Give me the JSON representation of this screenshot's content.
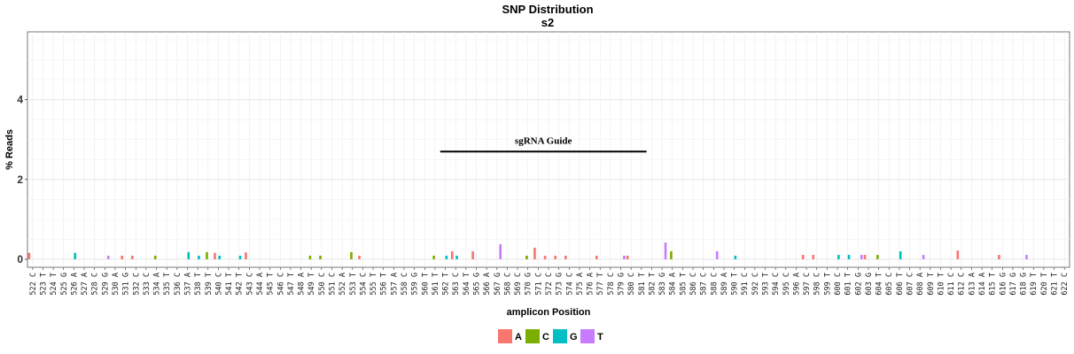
{
  "chart_data": {
    "type": "bar",
    "title": "SNP Distribution",
    "subtitle": "s2",
    "xlabel": "amplicon Position",
    "ylabel": "% Reads",
    "ylim": [
      -0.2,
      5.7
    ],
    "yticks": [
      0,
      2,
      4
    ],
    "grid": true,
    "legend_position": "bottom",
    "categories": [
      "522 C",
      "523 T",
      "524 T",
      "525 G",
      "526 A",
      "527 A",
      "528 C",
      "529 G",
      "530 A",
      "531 G",
      "532 C",
      "533 C",
      "534 A",
      "535 T",
      "536 C",
      "537 A",
      "538 T",
      "539 T",
      "540 C",
      "541 T",
      "542 T",
      "543 C",
      "544 A",
      "545 T",
      "546 C",
      "547 T",
      "548 A",
      "549 T",
      "550 C",
      "551 C",
      "552 A",
      "553 T",
      "554 C",
      "555 T",
      "556 T",
      "557 A",
      "558 C",
      "559 G",
      "560 T",
      "561 T",
      "562 T",
      "563 C",
      "564 T",
      "565 G",
      "566 A",
      "567 G",
      "568 C",
      "569 C",
      "570 G",
      "571 C",
      "572 C",
      "573 G",
      "574 C",
      "575 A",
      "576 A",
      "577 T",
      "578 C",
      "579 G",
      "580 C",
      "581 T",
      "582 T",
      "583 G",
      "584 A",
      "585 T",
      "586 C",
      "587 C",
      "588 C",
      "589 A",
      "590 T",
      "591 C",
      "592 C",
      "593 T",
      "594 C",
      "595 C",
      "596 A",
      "597 C",
      "598 C",
      "599 T",
      "600 C",
      "601 T",
      "602 G",
      "603 G",
      "604 T",
      "605 C",
      "606 T",
      "607 C",
      "608 A",
      "609 T",
      "610 T",
      "611 C",
      "612 C",
      "613 A",
      "614 A",
      "615 T",
      "616 G",
      "617 G",
      "618 G",
      "619 T",
      "620 T",
      "621 T",
      "622 C"
    ],
    "series": [
      {
        "name": "A",
        "color": "#F8766D",
        "values": [
          0.16,
          0,
          0,
          0,
          0,
          0,
          0,
          0,
          0,
          0.09,
          0.09,
          0,
          0,
          0,
          0,
          0,
          0,
          0,
          0.16,
          0,
          0,
          0.17,
          0,
          0,
          0,
          0,
          0,
          0,
          0,
          0,
          0,
          0,
          0.09,
          0,
          0,
          0,
          0,
          0,
          0,
          0,
          0,
          0.2,
          0,
          0.2,
          0,
          0,
          0,
          0,
          0,
          0.29,
          0.09,
          0.09,
          0.09,
          0,
          0,
          0.09,
          0,
          0,
          0.09,
          0,
          0,
          0,
          0,
          0,
          0,
          0,
          0,
          0,
          0,
          0,
          0,
          0,
          0,
          0,
          0,
          0.11,
          0.11,
          0,
          0,
          0,
          0,
          0.11,
          0,
          0,
          0,
          0,
          0,
          0,
          0,
          0,
          0.22,
          0,
          0,
          0,
          0.11,
          0,
          0,
          0,
          0,
          0,
          0
        ]
      },
      {
        "name": "C",
        "color": "#7CAE00",
        "values": [
          0,
          0,
          0,
          0,
          0,
          0,
          0,
          0,
          0,
          0,
          0,
          0,
          0.09,
          0,
          0,
          0,
          0,
          0.18,
          0,
          0,
          0,
          0,
          0,
          0,
          0,
          0,
          0,
          0.09,
          0.09,
          0,
          0,
          0.18,
          0,
          0,
          0,
          0,
          0,
          0,
          0,
          0.09,
          0,
          0,
          0,
          0,
          0,
          0,
          0,
          0,
          0.09,
          0,
          0,
          0,
          0,
          0,
          0,
          0,
          0,
          0,
          0,
          0,
          0,
          0,
          0.2,
          0,
          0,
          0,
          0,
          0,
          0,
          0,
          0,
          0,
          0,
          0,
          0,
          0,
          0,
          0,
          0,
          0,
          0,
          0,
          0.11,
          0,
          0,
          0,
          0,
          0,
          0,
          0,
          0,
          0,
          0,
          0,
          0,
          0,
          0,
          0,
          0,
          0,
          0
        ]
      },
      {
        "name": "G",
        "color": "#00BFC4",
        "values": [
          0,
          0,
          0,
          0,
          0.16,
          0,
          0,
          0,
          0,
          0,
          0,
          0,
          0,
          0,
          0,
          0.18,
          0.09,
          0,
          0.09,
          0,
          0.09,
          0,
          0,
          0,
          0,
          0,
          0,
          0,
          0,
          0,
          0,
          0,
          0,
          0,
          0,
          0,
          0,
          0,
          0,
          0,
          0.09,
          0.09,
          0,
          0,
          0,
          0,
          0,
          0,
          0,
          0,
          0,
          0,
          0,
          0,
          0,
          0,
          0,
          0,
          0,
          0,
          0,
          0,
          0,
          0,
          0,
          0,
          0,
          0,
          0.09,
          0,
          0,
          0,
          0,
          0,
          0,
          0,
          0,
          0,
          0.11,
          0.11,
          0,
          0,
          0,
          0,
          0.2,
          0,
          0,
          0,
          0,
          0,
          0,
          0,
          0,
          0,
          0,
          0,
          0,
          0,
          0,
          0,
          0
        ]
      },
      {
        "name": "T",
        "color": "#C77CFF",
        "values": [
          0,
          0,
          0,
          0,
          0,
          0,
          0,
          0.09,
          0,
          0,
          0,
          0,
          0,
          0,
          0,
          0,
          0,
          0,
          0,
          0,
          0,
          0,
          0,
          0,
          0,
          0,
          0,
          0,
          0,
          0,
          0,
          0,
          0,
          0,
          0,
          0,
          0,
          0,
          0,
          0,
          0,
          0,
          0,
          0,
          0,
          0.38,
          0,
          0,
          0,
          0,
          0,
          0,
          0,
          0,
          0,
          0,
          0,
          0.09,
          0,
          0,
          0,
          0.42,
          0,
          0,
          0,
          0,
          0.2,
          0,
          0,
          0,
          0,
          0,
          0,
          0,
          0,
          0,
          0,
          0,
          0,
          0,
          0.11,
          0,
          0,
          0,
          0,
          0,
          0.11,
          0,
          0,
          0,
          0,
          0,
          0,
          0,
          0,
          0,
          0.11,
          0,
          0,
          0,
          0
        ]
      }
    ],
    "annotation": {
      "label": "sgRNA Guide",
      "y": 2.7,
      "x_start": 562,
      "x_end": 581.5
    }
  }
}
